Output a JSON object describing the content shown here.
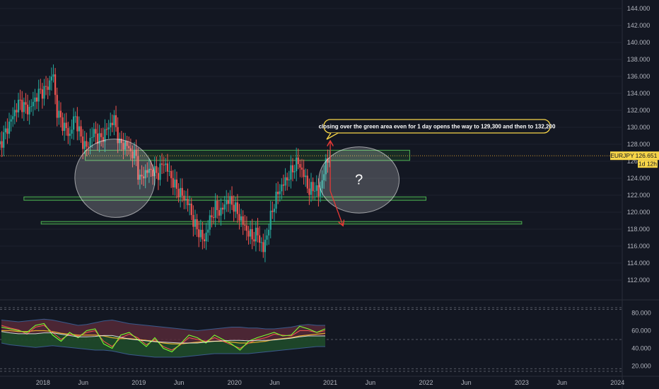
{
  "chart_data": {
    "type": "candlestick",
    "symbol": "EURJPY",
    "current_price_label": "126.651",
    "countdown_label": "1d 12h",
    "price_axis": {
      "ylim": [
        110.0,
        145.0
      ],
      "ticks": [
        "144.000",
        "142.000",
        "140.000",
        "138.000",
        "136.000",
        "134.000",
        "132.000",
        "130.000",
        "128.000",
        "126.000",
        "124.000",
        "122.000",
        "120.000",
        "118.000",
        "116.000",
        "114.000",
        "112.000"
      ]
    },
    "oscillator_axis": {
      "ylim": [
        10,
        90
      ],
      "ticks": [
        "80.000",
        "60.000",
        "40.000",
        "20.000"
      ]
    },
    "x_ticks": [
      "2018",
      "Jun",
      "2019",
      "Jun",
      "2020",
      "Jun",
      "2021",
      "Jun",
      "2022",
      "Jun",
      "2023",
      "Jun",
      "2024"
    ],
    "annotation": "closing over the green area even  for 1 day opens the way to  129,300 and then to 132,200",
    "question_mark": "?",
    "price_path": [
      [
        2017.55,
        128.0
      ],
      [
        2017.65,
        130.5
      ],
      [
        2017.75,
        133.0
      ],
      [
        2017.85,
        132.0
      ],
      [
        2017.95,
        134.0
      ],
      [
        2018.03,
        134.5
      ],
      [
        2018.08,
        135.5
      ],
      [
        2018.1,
        137.0
      ],
      [
        2018.14,
        132.0
      ],
      [
        2018.2,
        130.5
      ],
      [
        2018.28,
        129.0
      ],
      [
        2018.33,
        131.5
      ],
      [
        2018.4,
        128.5
      ],
      [
        2018.46,
        127.5
      ],
      [
        2018.52,
        129.5
      ],
      [
        2018.6,
        128.5
      ],
      [
        2018.68,
        130.0
      ],
      [
        2018.74,
        131.0
      ],
      [
        2018.8,
        128.0
      ],
      [
        2018.87,
        128.0
      ],
      [
        2018.92,
        127.0
      ],
      [
        2018.98,
        126.5
      ],
      [
        2019.0,
        123.5
      ],
      [
        2019.05,
        124.5
      ],
      [
        2019.12,
        125.0
      ],
      [
        2019.2,
        124.5
      ],
      [
        2019.26,
        126.0
      ],
      [
        2019.32,
        124.5
      ],
      [
        2019.38,
        123.0
      ],
      [
        2019.45,
        122.0
      ],
      [
        2019.52,
        121.0
      ],
      [
        2019.58,
        118.5
      ],
      [
        2019.64,
        117.5
      ],
      [
        2019.68,
        116.5
      ],
      [
        2019.74,
        119.0
      ],
      [
        2019.8,
        120.5
      ],
      [
        2019.86,
        120.0
      ],
      [
        2019.92,
        121.5
      ],
      [
        2019.98,
        121.0
      ],
      [
        2020.05,
        119.5
      ],
      [
        2020.12,
        118.0
      ],
      [
        2020.18,
        117.0
      ],
      [
        2020.24,
        117.5
      ],
      [
        2020.3,
        115.5
      ],
      [
        2020.36,
        118.5
      ],
      [
        2020.4,
        120.5
      ],
      [
        2020.46,
        122.5
      ],
      [
        2020.52,
        123.5
      ],
      [
        2020.58,
        124.5
      ],
      [
        2020.66,
        126.0
      ],
      [
        2020.72,
        124.5
      ],
      [
        2020.78,
        122.5
      ],
      [
        2020.84,
        123.0
      ],
      [
        2020.88,
        122.0
      ],
      [
        2020.92,
        124.0
      ],
      [
        2020.96,
        126.0
      ],
      [
        2021.0,
        126.7
      ]
    ],
    "bands": [
      {
        "name": "green_resistance_zone",
        "low": 126.1,
        "high": 127.3,
        "x_start": 2018.44,
        "x_end": 2021.83,
        "color": "#2e7d32"
      },
      {
        "name": "green_support_zone",
        "low": 121.4,
        "high": 121.8,
        "x_start": 2017.8,
        "x_end": 2022.0,
        "color": "#2e7d32"
      },
      {
        "name": "green_support_line",
        "low": 118.6,
        "high": 118.9,
        "x_start": 2017.98,
        "x_end": 2023.0,
        "color": "#2e7d32"
      }
    ],
    "reference_line": 126.65,
    "arrows": [
      {
        "from": [
          2021.0,
          122.5
        ],
        "to": [
          2021.0,
          128.3
        ]
      },
      {
        "from": [
          2021.0,
          122.5
        ],
        "to": [
          2021.13,
          118.5
        ]
      }
    ],
    "ellipses": [
      {
        "cx": 2018.75,
        "cy": 124.0,
        "rx": 0.42,
        "ry": 4.6
      },
      {
        "cx": 2021.3,
        "cy": 123.8,
        "rx": 0.42,
        "ry": 3.9
      }
    ],
    "oscillator": {
      "levels": [
        86,
        84,
        50,
        17,
        14
      ],
      "upper_band": [
        72,
        71,
        70,
        71,
        72,
        73,
        72,
        70,
        68,
        66,
        67,
        69,
        71,
        72,
        70,
        68,
        67,
        66,
        65,
        64,
        63,
        62,
        61,
        60,
        61,
        62,
        63,
        64,
        64,
        63,
        63,
        62,
        62,
        63,
        64,
        66,
        67,
        66,
        66
      ],
      "lower_band": [
        46,
        44,
        43,
        42,
        41,
        42,
        43,
        42,
        41,
        40,
        39,
        38,
        38,
        37,
        35,
        33,
        32,
        31,
        30,
        30,
        30,
        30,
        31,
        32,
        33,
        34,
        34,
        34,
        34,
        34,
        35,
        36,
        37,
        38,
        39,
        40,
        41,
        42,
        42
      ],
      "fast_line": [
        64,
        62,
        60,
        58,
        66,
        68,
        55,
        48,
        58,
        52,
        60,
        62,
        45,
        40,
        55,
        58,
        50,
        42,
        52,
        40,
        36,
        45,
        55,
        52,
        46,
        55,
        50,
        45,
        38,
        48,
        52,
        55,
        58,
        54,
        55,
        65,
        62,
        58,
        62
      ],
      "red_line": [
        66,
        63,
        61,
        56,
        64,
        66,
        58,
        50,
        56,
        54,
        58,
        60,
        48,
        42,
        52,
        56,
        52,
        44,
        50,
        42,
        38,
        44,
        52,
        50,
        48,
        52,
        48,
        44,
        40,
        46,
        50,
        52,
        56,
        55,
        54,
        60,
        60,
        58,
        60
      ],
      "signal_line": [
        60,
        60,
        59,
        59,
        60,
        60,
        59,
        57,
        56,
        55,
        55,
        55,
        54,
        52,
        51,
        51,
        50,
        49,
        48,
        46,
        45,
        45,
        46,
        47,
        48,
        48,
        48,
        47,
        46,
        46,
        47,
        48,
        50,
        51,
        52,
        54,
        55,
        56,
        57
      ]
    },
    "colors": {
      "background": "#131722",
      "grid": "#1e222d",
      "up": "#26a69a",
      "down": "#ef5350",
      "zone": "#4caf50",
      "ellipse": "#ffffff",
      "annotation_border": "#f7d548",
      "price_tag": "#f7d548",
      "arrow": "#e53935",
      "osc_band_fill": "#5a2a3a",
      "osc_band_fill_green": "#1f4a2a",
      "osc_band_edge": "#3a5a8c",
      "osc_fast": "#7cff2f",
      "osc_signal": "#e0a82e",
      "osc_white": "#ffffff"
    }
  }
}
